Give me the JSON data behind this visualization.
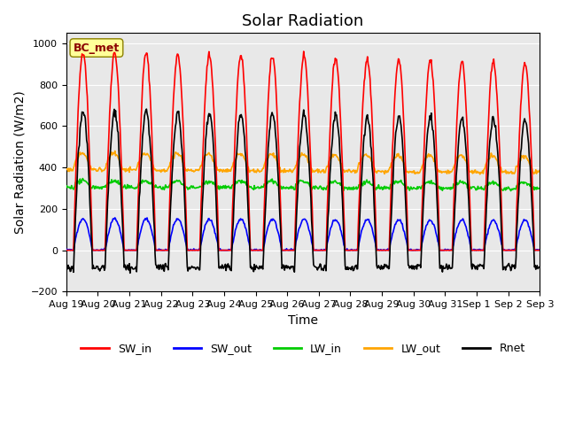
{
  "title": "Solar Radiation",
  "ylabel": "Solar Radiation (W/m2)",
  "xlabel": "Time",
  "ylim": [
    -200,
    1050
  ],
  "xtick_labels": [
    "Aug 19",
    "Aug 20",
    "Aug 21",
    "Aug 22",
    "Aug 23",
    "Aug 24",
    "Aug 25",
    "Aug 26",
    "Aug 27",
    "Aug 28",
    "Aug 29",
    "Aug 30",
    "Aug 31",
    "Sep 1",
    "Sep 2",
    "Sep 3"
  ],
  "series": {
    "SW_in": {
      "color": "#FF0000",
      "linewidth": 1.2
    },
    "SW_out": {
      "color": "#0000FF",
      "linewidth": 1.2
    },
    "LW_in": {
      "color": "#00CC00",
      "linewidth": 1.2
    },
    "LW_out": {
      "color": "#FFA500",
      "linewidth": 1.2
    },
    "Rnet": {
      "color": "#000000",
      "linewidth": 1.2
    }
  },
  "legend_label": "BC_met",
  "legend_label_color": "#8B0000",
  "legend_box_facecolor": "#FFFF99",
  "legend_box_edgecolor": "#8B8000",
  "background_color": "#E8E8E8",
  "title_fontsize": 13,
  "axis_fontsize": 10,
  "tick_fontsize": 8,
  "n_days": 15,
  "dt_hours": 0.5
}
